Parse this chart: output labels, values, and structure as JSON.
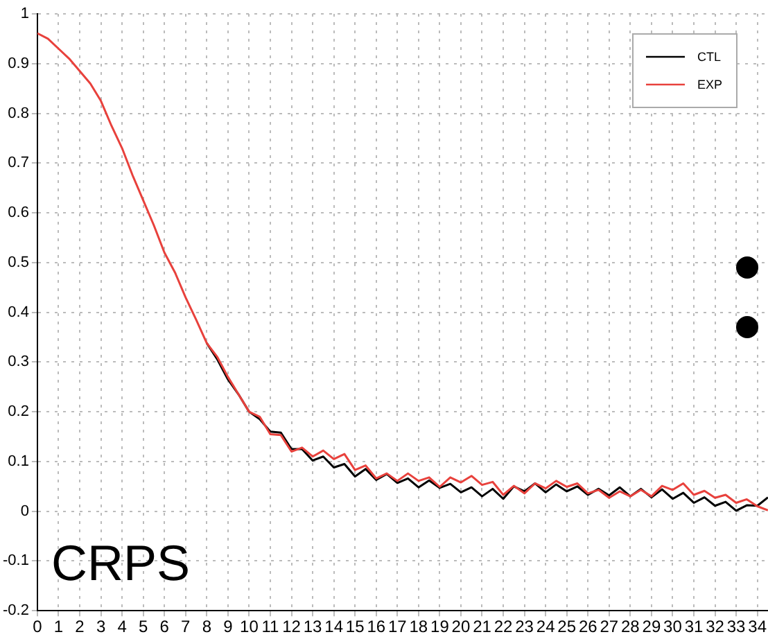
{
  "chart_data": {
    "type": "line",
    "xlim": [
      0,
      34.5
    ],
    "xticks": [
      0,
      1,
      2,
      3,
      4,
      5,
      6,
      7,
      8,
      9,
      10,
      11,
      12,
      13,
      14,
      15,
      16,
      17,
      18,
      19,
      20,
      21,
      22,
      23,
      24,
      25,
      26,
      27,
      28,
      29,
      30,
      31,
      32,
      33,
      34
    ],
    "ylim": [
      -0.2,
      1
    ],
    "yticks": [
      -0.2,
      -0.1,
      0,
      0.1,
      0.2,
      0.3,
      0.4,
      0.5,
      0.6,
      0.7,
      0.8,
      0.9,
      1
    ],
    "grid": true,
    "legend": "top right",
    "line_style": "solid",
    "annotations": [
      "CRPS"
    ],
    "series": [
      {
        "name": "CTL",
        "color": "#000000",
        "x": [
          8,
          8.5,
          9,
          9.5,
          10,
          10.5,
          11,
          11.5,
          12,
          12.5,
          13,
          13.5,
          14,
          14.5,
          15,
          15.5,
          16,
          16.5,
          17,
          17.5,
          18,
          18.5,
          19,
          19.5,
          20,
          20.5,
          21,
          21.5,
          22,
          22.5,
          23,
          23.5,
          24,
          24.5,
          25,
          25.5,
          26,
          26.5,
          27,
          27.5,
          28,
          28.5,
          29,
          29.5,
          30,
          30.5,
          31,
          31.5,
          32,
          32.5,
          33,
          33.5,
          34,
          34.5
        ],
        "values": [
          0.338,
          0.305,
          0.265,
          0.235,
          0.2,
          0.185,
          0.16,
          0.158,
          0.125,
          0.125,
          0.102,
          0.11,
          0.088,
          0.095,
          0.07,
          0.085,
          0.063,
          0.075,
          0.057,
          0.066,
          0.048,
          0.062,
          0.047,
          0.055,
          0.038,
          0.048,
          0.03,
          0.045,
          0.025,
          0.05,
          0.04,
          0.056,
          0.038,
          0.054,
          0.04,
          0.05,
          0.033,
          0.045,
          0.032,
          0.048,
          0.03,
          0.045,
          0.028,
          0.044,
          0.025,
          0.037,
          0.017,
          0.028,
          0.011,
          0.019,
          0.001,
          0.012,
          0.011,
          0.028
        ]
      },
      {
        "name": "EXP",
        "color": "#e8413c",
        "x": [
          0,
          0.5,
          1,
          1.5,
          2,
          2.5,
          3,
          3.5,
          4,
          4.5,
          5,
          5.5,
          6,
          6.5,
          7,
          7.5,
          8,
          8.5,
          9,
          9.5,
          10,
          10.5,
          11,
          11.5,
          12,
          12.5,
          13,
          13.5,
          14,
          14.5,
          15,
          15.5,
          16,
          16.5,
          17,
          17.5,
          18,
          18.5,
          19,
          19.5,
          20,
          20.5,
          21,
          21.5,
          22,
          22.5,
          23,
          23.5,
          24,
          24.5,
          25,
          25.5,
          26,
          26.5,
          27,
          27.5,
          28,
          28.5,
          29,
          29.5,
          30,
          30.5,
          31,
          31.5,
          32,
          32.5,
          33,
          33.5,
          34,
          34.5
        ],
        "values": [
          0.961,
          0.95,
          0.93,
          0.91,
          0.885,
          0.86,
          0.825,
          0.775,
          0.73,
          0.675,
          0.625,
          0.575,
          0.52,
          0.48,
          0.43,
          0.385,
          0.338,
          0.31,
          0.27,
          0.235,
          0.2,
          0.19,
          0.155,
          0.153,
          0.12,
          0.128,
          0.11,
          0.122,
          0.105,
          0.115,
          0.083,
          0.092,
          0.066,
          0.076,
          0.061,
          0.076,
          0.061,
          0.068,
          0.049,
          0.068,
          0.058,
          0.071,
          0.053,
          0.059,
          0.033,
          0.051,
          0.036,
          0.056,
          0.046,
          0.061,
          0.049,
          0.056,
          0.036,
          0.043,
          0.027,
          0.04,
          0.03,
          0.043,
          0.03,
          0.051,
          0.043,
          0.056,
          0.033,
          0.041,
          0.027,
          0.033,
          0.017,
          0.024,
          0.01,
          0.002
        ]
      }
    ]
  }
}
